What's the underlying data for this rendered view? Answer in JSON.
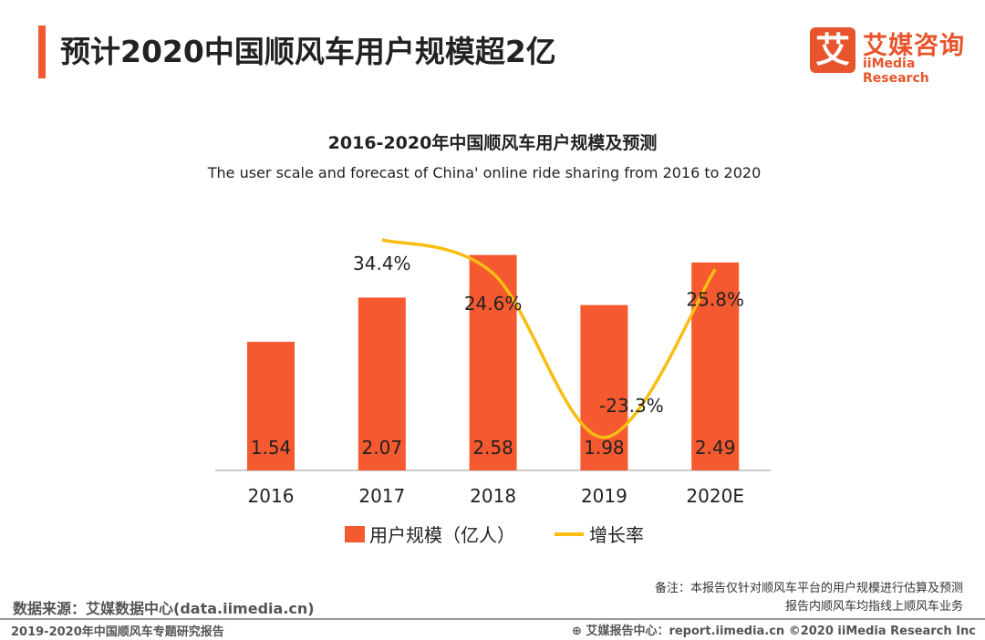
{
  "header": {
    "title": "预计2020中国顺风车用户规模超2亿",
    "logo_mark": "艾",
    "logo_cn": "艾媒咨询",
    "logo_en": "iiMedia Research"
  },
  "colors": {
    "bar": "#f5592f",
    "line": "#f9bd12",
    "accent": "#f05a2e"
  },
  "chart_data": {
    "type": "bar",
    "title": "2016-2020年中国顺风车用户规模及预测",
    "subtitle": "The user scale and forecast of China' online ride sharing  from 2016 to 2020",
    "categories": [
      "2016",
      "2017",
      "2018",
      "2019",
      "2020E"
    ],
    "series": [
      {
        "name": "用户规模（亿人）",
        "type": "bar",
        "values": [
          1.54,
          2.07,
          2.58,
          1.98,
          2.49
        ],
        "labels": [
          "1.54",
          "2.07",
          "2.58",
          "1.98",
          "2.49"
        ]
      },
      {
        "name": "增长率",
        "type": "line",
        "values": [
          null,
          34.4,
          24.6,
          -23.3,
          25.8
        ],
        "labels": [
          "",
          "34.4%",
          "24.6%",
          "-23.3%",
          "25.8%"
        ]
      }
    ],
    "legend": "bottom"
  },
  "footer": {
    "source": "数据来源：艾媒数据中心(data.iimedia.cn)",
    "note_1": "备注：本报告仅针对顺风车平台的用户规模进行估算及预测",
    "note_2": "报告内顺风车均指线上顺风车业务",
    "report": "2019-2020年中国顺风车专题研究报告",
    "site": "艾媒报告中心：report.iimedia.cn   ©2020  iiMedia Research  Inc"
  }
}
